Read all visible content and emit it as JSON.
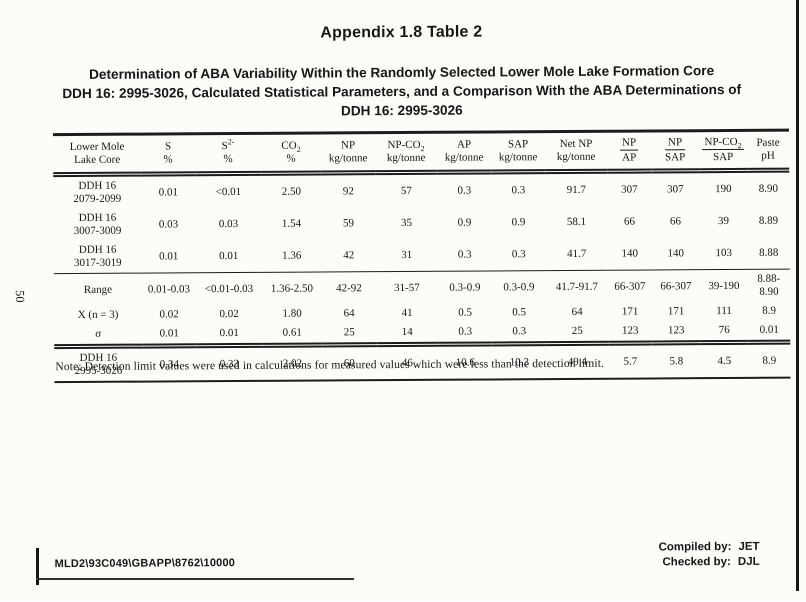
{
  "page": {
    "number": "50"
  },
  "header": {
    "appendix_title": "Appendix 1.8 Table 2",
    "subtitle_line1": "Determination of ABA Variability Within the Randomly Selected Lower Mole Lake Formation Core",
    "subtitle_line2": "DDH 16: 2995-3026, Calculated Statistical Parameters, and a Comparison With the ABA Determinations of",
    "subtitle_line3": "DDH 16: 2995-3026"
  },
  "table": {
    "columns": [
      {
        "l1": "Lower Mole",
        "l2": "Lake Core"
      },
      {
        "l1": "S",
        "l2": "%"
      },
      {
        "l1": "S",
        "l1_sup": "2-",
        "l2": "%"
      },
      {
        "l1": "CO",
        "l1_sub": "2",
        "l2": "%"
      },
      {
        "l1": "NP",
        "l2": "kg/tonne"
      },
      {
        "l1": "NP-CO",
        "l1_sub": "2",
        "l2": "kg/tonne"
      },
      {
        "l1": "AP",
        "l2": "kg/tonne"
      },
      {
        "l1": "SAP",
        "l2": "kg/tonne"
      },
      {
        "l1": "Net NP",
        "l2": "kg/tonne"
      },
      {
        "fraction": true,
        "l1": "NP",
        "l2": "AP"
      },
      {
        "fraction": true,
        "l1": "NP",
        "l2": "SAP"
      },
      {
        "fraction": true,
        "l1": "NP-CO",
        "l1_sub": "2",
        "l2": "SAP"
      },
      {
        "l1": "Paste",
        "l2": "pH"
      }
    ],
    "rows": [
      {
        "label_lines": [
          "DDH 16",
          "2079-2099"
        ],
        "values": [
          "0.01",
          "<0.01",
          "2.50",
          "92",
          "57",
          "0.3",
          "0.3",
          "91.7",
          "307",
          "307",
          "190",
          "8.90"
        ]
      },
      {
        "label_lines": [
          "DDH 16",
          "3007-3009"
        ],
        "values": [
          "0.03",
          "0.03",
          "1.54",
          "59",
          "35",
          "0.9",
          "0.9",
          "58.1",
          "66",
          "66",
          "39",
          "8.89"
        ]
      },
      {
        "label_lines": [
          "DDH 16",
          "3017-3019"
        ],
        "values": [
          "0.01",
          "0.01",
          "1.36",
          "42",
          "31",
          "0.3",
          "0.3",
          "41.7",
          "140",
          "140",
          "103",
          "8.88"
        ]
      },
      {
        "label_lines": [
          "Range"
        ],
        "rule_above": "single",
        "values": [
          "0.01-0.03",
          "<0.01-0.03",
          "1.36-2.50",
          "42-92",
          "31-57",
          "0.3-0.9",
          "0.3-0.9",
          "41.7-91.7",
          "66-307",
          "66-307",
          "39-190",
          "8.88-8.90"
        ]
      },
      {
        "label_lines": [
          "X (n = 3)"
        ],
        "values": [
          "0.02",
          "0.02",
          "1.80",
          "64",
          "41",
          "0.5",
          "0.5",
          "64",
          "171",
          "171",
          "111",
          "8.9"
        ]
      },
      {
        "label_lines": [
          "σ"
        ],
        "values": [
          "0.01",
          "0.01",
          "0.61",
          "25",
          "14",
          "0.3",
          "0.3",
          "25",
          "123",
          "123",
          "76",
          "0.01"
        ]
      },
      {
        "label_lines": [
          "DDH 16",
          "2995-3026"
        ],
        "rule_above": "double",
        "values": [
          "0.34",
          "0.33",
          "2.02",
          "60",
          "46",
          "10.6",
          "10.3",
          "49.4",
          "5.7",
          "5.8",
          "4.5",
          "8.9"
        ]
      }
    ]
  },
  "note": {
    "text": "Note:  Detection limit values were used in calculations for measured values which were less than the detection limit."
  },
  "footer": {
    "doc_code": "MLD2\\93C049\\GBAPP\\8762\\10000",
    "compiled_by_label": "Compiled by:",
    "compiled_by_value": "JET",
    "checked_by_label": "Checked by:",
    "checked_by_value": "DJL"
  },
  "colors": {
    "ink": "#161616",
    "paper": "#fcfcf9"
  }
}
